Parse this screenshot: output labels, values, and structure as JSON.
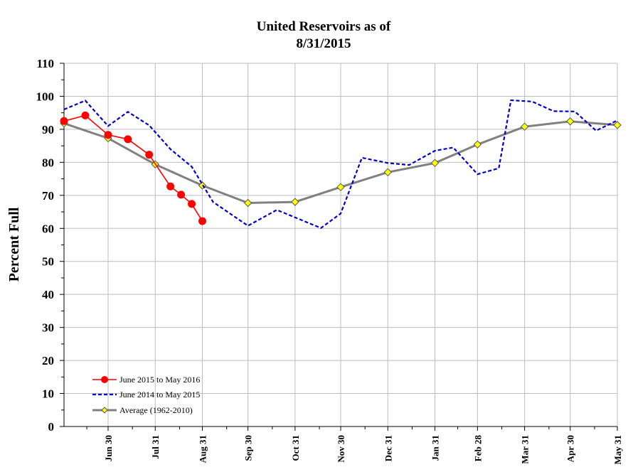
{
  "chart_data": {
    "type": "line",
    "title": "United Reservoirs as of",
    "subtitle": "8/31/2015",
    "ylabel": "Percent Full",
    "xlabel": "",
    "ylim": [
      0,
      110
    ],
    "y_ticks": [
      "0",
      "10",
      "20",
      "30",
      "40",
      "50",
      "60",
      "70",
      "80",
      "90",
      "100",
      "110"
    ],
    "x_tick_labels": [
      "Jun 30",
      "Jul 31",
      "Aug 31",
      "Sep 30",
      "Oct 31",
      "Nov 30",
      "Dec 31",
      "Jan 31",
      "Feb 28",
      "Mar 31",
      "Apr 30",
      "May 31"
    ],
    "grid": true,
    "legend_position": "bottom-left",
    "series": [
      {
        "name": "June 2015 to May 2016",
        "color": "#ff0000",
        "style": "solid-circle",
        "points": [
          {
            "x": "Jun 1",
            "y": 92.5
          },
          {
            "x": "Jun 15",
            "y": 94.2
          },
          {
            "x": "Jun 30",
            "y": 88.3
          },
          {
            "x": "Jul 13",
            "y": 87.0
          },
          {
            "x": "Jul 27",
            "y": 82.3
          },
          {
            "x": "Aug 10",
            "y": 72.7
          },
          {
            "x": "Aug 17",
            "y": 70.2
          },
          {
            "x": "Aug 24",
            "y": 67.4
          },
          {
            "x": "Aug 31",
            "y": 62.2
          }
        ]
      },
      {
        "name": "June 2014 to May 2015",
        "color": "#0000cc",
        "style": "dashed",
        "points": [
          {
            "x": "Jun 1",
            "y": 96.0
          },
          {
            "x": "Jun 15",
            "y": 98.7
          },
          {
            "x": "Jun 30",
            "y": 91.0
          },
          {
            "x": "Jul 13",
            "y": 95.3
          },
          {
            "x": "Jul 27",
            "y": 91.2
          },
          {
            "x": "Aug 10",
            "y": 84.0
          },
          {
            "x": "Aug 24",
            "y": 78.7
          },
          {
            "x": "Sep 7",
            "y": 68.0
          },
          {
            "x": "Sep 30",
            "y": 60.8
          },
          {
            "x": "Oct 19",
            "y": 65.6
          },
          {
            "x": "Nov 17",
            "y": 60.1
          },
          {
            "x": "Nov 30",
            "y": 64.5
          },
          {
            "x": "Dec 14",
            "y": 81.4
          },
          {
            "x": "Dec 31",
            "y": 79.8
          },
          {
            "x": "Jan 14",
            "y": 79.2
          },
          {
            "x": "Jan 31",
            "y": 83.5
          },
          {
            "x": "Feb 12",
            "y": 84.5
          },
          {
            "x": "Feb 28",
            "y": 76.4
          },
          {
            "x": "Mar 14",
            "y": 78.2
          },
          {
            "x": "Mar 22",
            "y": 98.8
          },
          {
            "x": "Apr 5",
            "y": 98.4
          },
          {
            "x": "Apr 19",
            "y": 95.5
          },
          {
            "x": "May 3",
            "y": 95.4
          },
          {
            "x": "May 17",
            "y": 89.6
          },
          {
            "x": "May 31",
            "y": 92.7
          }
        ]
      },
      {
        "name": "Average (1962-2010)",
        "color": "#808080",
        "marker_color": "#ffff00",
        "style": "solid-diamond",
        "points": [
          {
            "x": "Jun 1",
            "y": 91.8
          },
          {
            "x": "Jun 30",
            "y": 87.3
          },
          {
            "x": "Jul 31",
            "y": 79.4
          },
          {
            "x": "Aug 31",
            "y": 73.0
          },
          {
            "x": "Sep 30",
            "y": 67.7
          },
          {
            "x": "Oct 31",
            "y": 68.0
          },
          {
            "x": "Nov 30",
            "y": 72.5
          },
          {
            "x": "Dec 31",
            "y": 77.0
          },
          {
            "x": "Jan 31",
            "y": 79.8
          },
          {
            "x": "Feb 28",
            "y": 85.4
          },
          {
            "x": "Mar 31",
            "y": 90.8
          },
          {
            "x": "Apr 30",
            "y": 92.4
          },
          {
            "x": "May 31",
            "y": 91.3
          }
        ]
      }
    ]
  }
}
